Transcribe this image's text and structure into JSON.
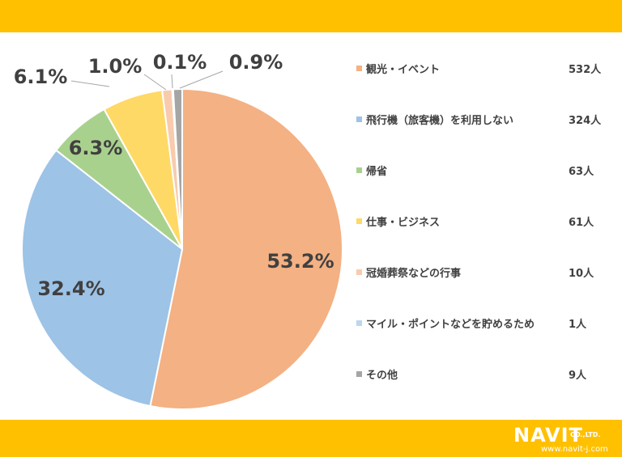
{
  "colors": {
    "banner": "#FFC000",
    "text": "#404040",
    "label_dark": "#404040"
  },
  "logo": {
    "brand": "NAVIT",
    "suffix": "CO.,LTD.",
    "url": "www.navit-j.com"
  },
  "chart_data": {
    "type": "pie",
    "start_angle_deg": 0,
    "direction": "clockwise",
    "slices": [
      {
        "label": "観光・イベント",
        "value": 532,
        "display_value": "532人",
        "percent_label": "53.2%",
        "color": "#F4B183"
      },
      {
        "label": "飛行機（旅客機）を利用しない",
        "value": 324,
        "display_value": "324人",
        "percent_label": "32.4%",
        "color": "#9DC3E6"
      },
      {
        "label": "帰省",
        "value": 63,
        "display_value": "63人",
        "percent_label": "6.3%",
        "color": "#A9D18E"
      },
      {
        "label": "仕事・ビジネス",
        "value": 61,
        "display_value": "61人",
        "percent_label": "6.1%",
        "color": "#FFD966"
      },
      {
        "label": "冠婚葬祭などの行事",
        "value": 10,
        "display_value": "10人",
        "percent_label": "1.0%",
        "color": "#F8CBAD"
      },
      {
        "label": "マイル・ポイントなどを貯めるため",
        "value": 1,
        "display_value": "1人",
        "percent_label": "0.1%",
        "color": "#BDD7EE"
      },
      {
        "label": "その他",
        "value": 9,
        "display_value": "9人",
        "percent_label": "0.9%",
        "color": "#A5A5A5"
      }
    ]
  }
}
